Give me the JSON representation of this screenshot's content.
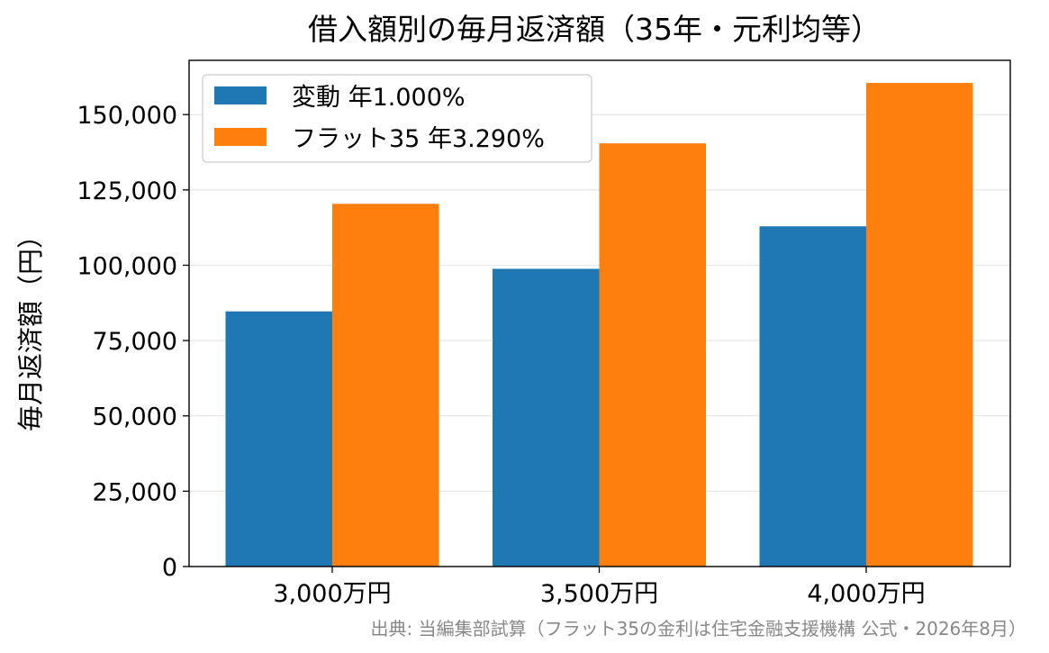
{
  "chart_data": {
    "type": "bar",
    "title": "借入額別の毎月返済額（35年・元利均等）",
    "xlabel": "",
    "ylabel": "毎月返済額（円）",
    "categories": [
      "3,000万円",
      "3,500万円",
      "4,000万円"
    ],
    "series": [
      {
        "name": "変動 年1.000%",
        "color": "#1f77b4",
        "values": [
          84685,
          98799,
          112914
        ]
      },
      {
        "name": "フラット35 年3.290%",
        "color": "#ff7f0e",
        "values": [
          120383,
          140447,
          160511
        ]
      }
    ],
    "ylim": [
      0,
      168000
    ],
    "yticks": [
      0,
      25000,
      50000,
      75000,
      100000,
      125000,
      150000
    ],
    "ytick_labels": [
      "0",
      "25,000",
      "50,000",
      "75,000",
      "100,000",
      "125,000",
      "150,000"
    ],
    "grid": "horizontal",
    "legend_position": "top-left",
    "source": "出典: 当編集部試算（フラット35の金利は住宅金融支援機構 公式・2026年8月）"
  }
}
